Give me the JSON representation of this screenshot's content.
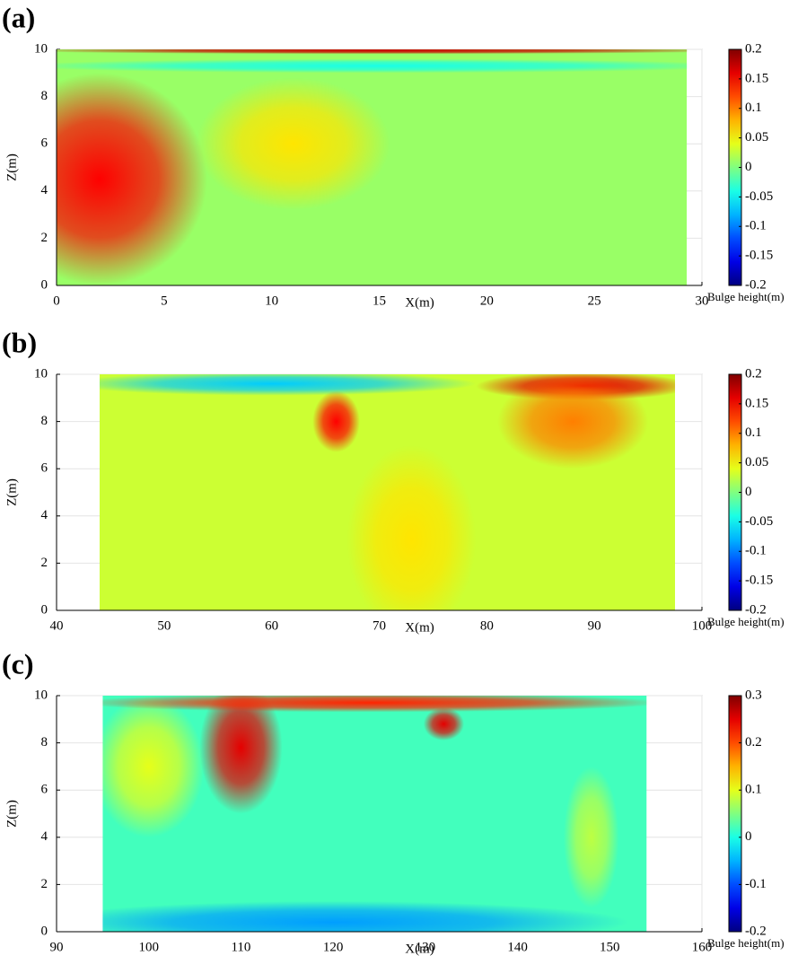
{
  "chart_data": [
    {
      "type": "heatmap",
      "panel_label": "(a)",
      "xlabel": "X(m)",
      "ylabel": "Z(m)",
      "xlim": [
        0,
        30
      ],
      "xticks": [
        0,
        5,
        10,
        15,
        20,
        25,
        30
      ],
      "ylim": [
        0,
        10
      ],
      "yticks": [
        0,
        2,
        4,
        6,
        8,
        10
      ],
      "grid": true,
      "colorbar": {
        "label": "Bulge height(m)",
        "lim": [
          -0.2,
          0.2
        ],
        "ticks": [
          -0.2,
          -0.15,
          -0.1,
          -0.05,
          0,
          0.05,
          0.1,
          0.15,
          0.2
        ],
        "colormap": "jet"
      },
      "extent": [
        0,
        29.3
      ],
      "base": 0.01,
      "hotspots": [
        {
          "x": 2,
          "z": 4.5,
          "rx": 5,
          "rz": 4.5,
          "value": 0.15
        },
        {
          "x": 11,
          "z": 6,
          "rx": 4.5,
          "rz": 2.8,
          "value": 0.06
        },
        {
          "x": 15,
          "z": 9.3,
          "rx": 17,
          "rz": 0.3,
          "value": -0.04
        },
        {
          "x": 15,
          "z": 9.95,
          "rx": 17,
          "rz": 0.15,
          "value": 0.17
        }
      ]
    },
    {
      "type": "heatmap",
      "panel_label": "(b)",
      "xlabel": "X(m)",
      "ylabel": "Z(m)",
      "xlim": [
        40,
        100
      ],
      "xticks": [
        40,
        50,
        60,
        70,
        80,
        90,
        100
      ],
      "ylim": [
        0,
        10
      ],
      "yticks": [
        0,
        2,
        4,
        6,
        8,
        10
      ],
      "grid": true,
      "colorbar": {
        "label": "Bulge height(m)",
        "lim": [
          -0.2,
          0.2
        ],
        "ticks": [
          -0.2,
          -0.15,
          -0.1,
          -0.05,
          0,
          0.05,
          0.1,
          0.15,
          0.2
        ],
        "colormap": "jet"
      },
      "extent": [
        44,
        97.5
      ],
      "base": 0.03,
      "hotspots": [
        {
          "x": 60,
          "z": 9.6,
          "rx": 19,
          "rz": 0.5,
          "value": -0.07
        },
        {
          "x": 89,
          "z": 9.5,
          "rx": 10,
          "rz": 0.6,
          "value": 0.16
        },
        {
          "x": 66,
          "z": 8,
          "rx": 2.2,
          "rz": 1.3,
          "value": 0.15
        },
        {
          "x": 88,
          "z": 8,
          "rx": 7,
          "rz": 2,
          "value": 0.1
        },
        {
          "x": 73,
          "z": 3,
          "rx": 6,
          "rz": 4,
          "value": 0.06
        }
      ]
    },
    {
      "type": "heatmap",
      "panel_label": "(c)",
      "xlabel": "X(m)",
      "ylabel": "Z(m)",
      "xlim": [
        90,
        160
      ],
      "xticks": [
        90,
        100,
        110,
        120,
        130,
        140,
        150,
        160
      ],
      "ylim": [
        0,
        10
      ],
      "yticks": [
        0,
        2,
        4,
        6,
        8,
        10
      ],
      "grid": true,
      "colorbar": {
        "label": "Bulge height(m)",
        "lim": [
          -0.2,
          0.3
        ],
        "ticks": [
          -0.2,
          -0.1,
          0,
          0.1,
          0.2,
          0.3
        ],
        "colormap": "jet"
      },
      "extent": [
        95,
        154
      ],
      "base": 0.02,
      "hotspots": [
        {
          "x": 120,
          "z": 0.4,
          "rx": 32,
          "rz": 0.9,
          "value": -0.06
        },
        {
          "x": 100,
          "z": 7,
          "rx": 6,
          "rz": 3,
          "value": 0.1
        },
        {
          "x": 148,
          "z": 4,
          "rx": 3,
          "rz": 3,
          "value": 0.08
        },
        {
          "x": 110,
          "z": 7.8,
          "rx": 4.5,
          "rz": 2.8,
          "value": 0.25
        },
        {
          "x": 132,
          "z": 8.8,
          "rx": 2.2,
          "rz": 0.7,
          "value": 0.25
        },
        {
          "x": 124,
          "z": 9.7,
          "rx": 32,
          "rz": 0.4,
          "value": 0.22
        }
      ]
    }
  ]
}
